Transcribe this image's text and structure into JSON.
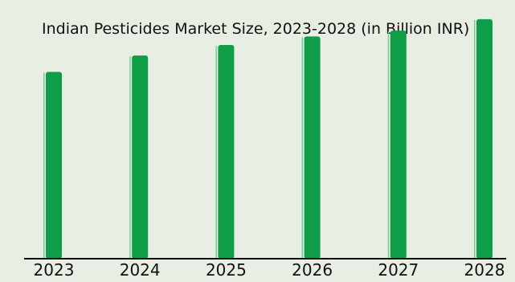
{
  "chart_data": {
    "type": "bar",
    "title": "Indian Pesticides Market Size, 2023-2028 (in Billion INR)",
    "xlabel": "",
    "ylabel": "",
    "categories": [
      "2023",
      "2024",
      "2025",
      "2026",
      "2027",
      "2028"
    ],
    "values": [
      195,
      212,
      223,
      232,
      238,
      250
    ],
    "ylim": [
      0,
      270
    ],
    "grid": false,
    "legend": "none",
    "colors": {
      "panel_background": "#e8eee3",
      "bar": "#0f9d48",
      "bar_edge": "#6fcf95",
      "axis": "#111111",
      "text": "#111111"
    }
  }
}
